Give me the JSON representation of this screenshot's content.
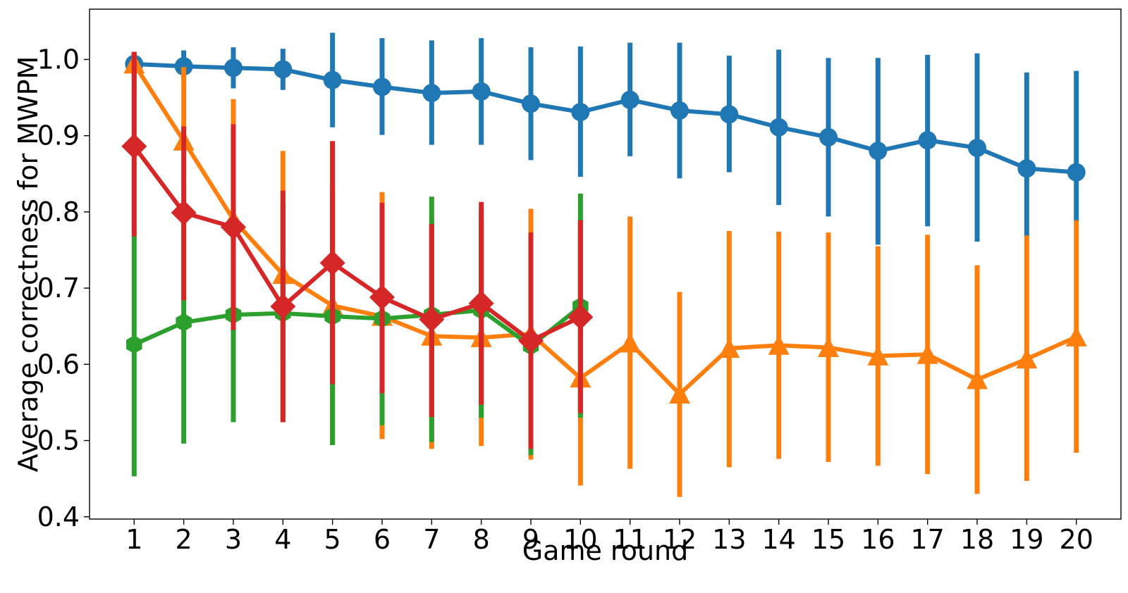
{
  "chart_data": {
    "type": "line",
    "title": "",
    "xlabel": "Game round",
    "ylabel": "Average correctness for MWPM",
    "x": [
      1,
      2,
      3,
      4,
      5,
      6,
      7,
      8,
      9,
      10,
      11,
      12,
      13,
      14,
      15,
      16,
      17,
      18,
      19,
      20
    ],
    "xlim": [
      0.1,
      20.9
    ],
    "ylim": [
      0.397,
      1.066
    ],
    "yticks": [
      0.4,
      0.5,
      0.6,
      0.7,
      0.8,
      0.9,
      1.0
    ],
    "ytick_labels": [
      "0.4",
      "0.5",
      "0.6",
      "0.7",
      "0.8",
      "0.9",
      "1.0"
    ],
    "xtick_labels": [
      "1",
      "2",
      "3",
      "4",
      "5",
      "6",
      "7",
      "8",
      "9",
      "10",
      "11",
      "12",
      "13",
      "14",
      "15",
      "16",
      "17",
      "18",
      "19",
      "20"
    ],
    "grid": false,
    "legend": "none",
    "series": [
      {
        "color": "#1f77b4",
        "marker": "circle",
        "x": [
          1,
          2,
          3,
          4,
          5,
          6,
          7,
          8,
          9,
          10,
          11,
          12,
          13,
          14,
          15,
          16,
          17,
          18,
          19,
          20
        ],
        "values": [
          0.994,
          0.991,
          0.989,
          0.987,
          0.973,
          0.964,
          0.956,
          0.958,
          0.942,
          0.931,
          0.947,
          0.933,
          0.928,
          0.911,
          0.898,
          0.88,
          0.894,
          0.884,
          0.857,
          0.852
        ],
        "err_low": [
          0.975,
          0.971,
          0.962,
          0.96,
          0.911,
          0.901,
          0.888,
          0.888,
          0.868,
          0.846,
          0.873,
          0.844,
          0.852,
          0.809,
          0.794,
          0.757,
          0.781,
          0.761,
          0.767,
          0.788
        ],
        "err_high": [
          1.01,
          1.012,
          1.016,
          1.014,
          1.035,
          1.028,
          1.025,
          1.028,
          1.016,
          1.017,
          1.022,
          1.022,
          1.005,
          1.013,
          1.002,
          1.002,
          1.006,
          1.008,
          0.983,
          0.985
        ]
      },
      {
        "color": "#ff7f0e",
        "marker": "triangle",
        "x": [
          1,
          2,
          3,
          4,
          5,
          6,
          7,
          8,
          9,
          10,
          11,
          12,
          13,
          14,
          15,
          16,
          17,
          18,
          19,
          20
        ],
        "values": [
          0.994,
          0.893,
          0.79,
          0.718,
          0.677,
          0.663,
          0.637,
          0.635,
          0.64,
          0.582,
          0.628,
          0.561,
          0.621,
          0.625,
          0.622,
          0.611,
          0.613,
          0.58,
          0.607,
          0.636
        ],
        "err_low": [
          0.99,
          0.897,
          0.678,
          0.595,
          0.494,
          0.502,
          0.489,
          0.493,
          0.475,
          0.441,
          0.463,
          0.426,
          0.465,
          0.476,
          0.472,
          0.467,
          0.456,
          0.43,
          0.447,
          0.484
        ],
        "err_high": [
          1.01,
          0.99,
          0.948,
          0.88,
          0.892,
          0.826,
          0.79,
          0.79,
          0.804,
          0.79,
          0.794,
          0.695,
          0.775,
          0.774,
          0.773,
          0.755,
          0.77,
          0.73,
          0.769,
          0.789
        ]
      },
      {
        "color": "#2ca02c",
        "marker": "hexagon",
        "x": [
          1,
          2,
          3,
          4,
          5,
          6,
          7,
          8,
          9,
          10
        ],
        "values": [
          0.626,
          0.655,
          0.665,
          0.667,
          0.663,
          0.66,
          0.665,
          0.671,
          0.624,
          0.676
        ],
        "err_low": [
          0.453,
          0.496,
          0.524,
          0.524,
          0.494,
          0.52,
          0.498,
          0.53,
          0.481,
          0.53
        ],
        "err_high": [
          0.77,
          0.81,
          0.806,
          0.812,
          0.83,
          0.8,
          0.82,
          0.8,
          0.77,
          0.824
        ]
      },
      {
        "color": "#d62728",
        "marker": "diamond",
        "x": [
          1,
          2,
          3,
          4,
          5,
          6,
          7,
          8,
          9,
          10
        ],
        "values": [
          0.886,
          0.799,
          0.78,
          0.676,
          0.733,
          0.688,
          0.659,
          0.68,
          0.631,
          0.662
        ],
        "err_low": [
          0.768,
          0.684,
          0.645,
          0.524,
          0.574,
          0.562,
          0.531,
          0.547,
          0.489,
          0.536
        ],
        "err_high": [
          1.01,
          0.912,
          0.915,
          0.828,
          0.893,
          0.812,
          0.784,
          0.813,
          0.773,
          0.789
        ]
      }
    ]
  }
}
